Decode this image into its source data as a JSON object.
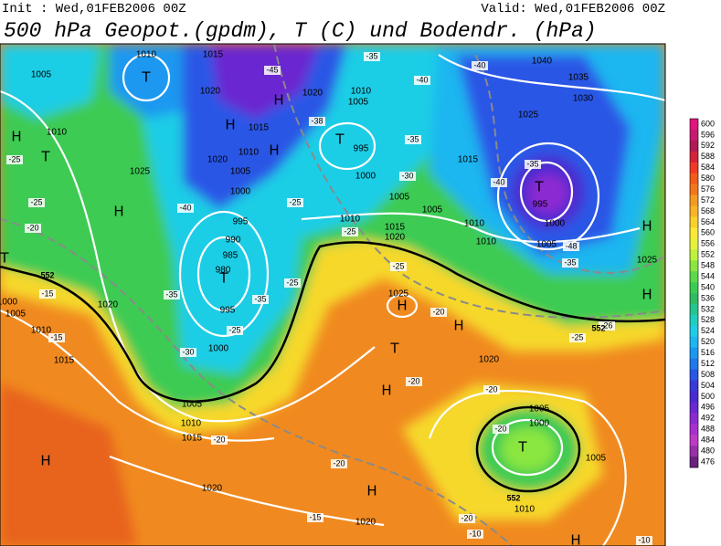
{
  "header": {
    "init": "Init : Wed,01FEB2006 00Z",
    "valid": "Valid: Wed,01FEB2006 00Z",
    "title": "500 hPa Geopot.(gpdm), T (C) und Bodendr. (hPa)"
  },
  "colorbar": {
    "levels": [
      600,
      596,
      592,
      588,
      584,
      580,
      576,
      572,
      568,
      564,
      560,
      556,
      552,
      548,
      544,
      540,
      536,
      532,
      528,
      524,
      520,
      516,
      512,
      508,
      504,
      500,
      496,
      492,
      488,
      484,
      480,
      476
    ],
    "colors": [
      "#e0157f",
      "#c71a6e",
      "#b01a56",
      "#d4223a",
      "#ef3a27",
      "#f25a1a",
      "#f2761a",
      "#f49a22",
      "#f8b425",
      "#fad02b",
      "#fbe836",
      "#e6f23a",
      "#bff03c",
      "#8be640",
      "#5cd94a",
      "#3ccb52",
      "#2ebd60",
      "#25c58f",
      "#1ecfbf",
      "#1ecde6",
      "#1db6f0",
      "#1c98f0",
      "#1f78ec",
      "#2a56e6",
      "#3a3ad8",
      "#4a2bd0",
      "#6a28d0",
      "#8c2ad2",
      "#a830cc",
      "#c03ac8",
      "#9a30a8",
      "#6a2080"
    ]
  },
  "map": {
    "pressure_centers": [
      "T",
      "H",
      "H",
      "H",
      "T",
      "H",
      "T",
      "H",
      "T",
      "T",
      "T",
      "H",
      "H",
      "H",
      "H",
      "T",
      "H",
      "T",
      "H",
      "H",
      "H"
    ],
    "isobar_labels": [
      1010,
      1015,
      1005,
      1020,
      1020,
      1005,
      1010,
      1015,
      1010,
      1020,
      1005,
      1000,
      995,
      1000,
      1010,
      1025,
      995,
      990,
      985,
      980,
      995,
      1000,
      1010,
      1015,
      1020,
      1005,
      1005,
      1010,
      1010,
      1015,
      1025,
      1040,
      1035,
      1030,
      995,
      1000,
      1005,
      1025,
      1025,
      1020,
      1005,
      1000,
      1005,
      1010,
      1020,
      1020,
      1015,
      1010,
      1005,
      1020,
      1005,
      1010,
      1015,
      1000
    ],
    "temperature_labels": [
      -45,
      -35,
      -40,
      -40,
      -38,
      -35,
      -30,
      -40,
      -35,
      -48,
      -35,
      -25,
      -25,
      -20,
      -15,
      -15,
      -35,
      -30,
      -25,
      -35,
      -25,
      -40,
      -25,
      -25,
      -25,
      -20,
      -20,
      -20,
      -20,
      -20,
      -20,
      -15,
      -20,
      -25,
      -26,
      -10,
      -10
    ],
    "geopotential_labels": [
      552,
      552,
      552
    ]
  }
}
